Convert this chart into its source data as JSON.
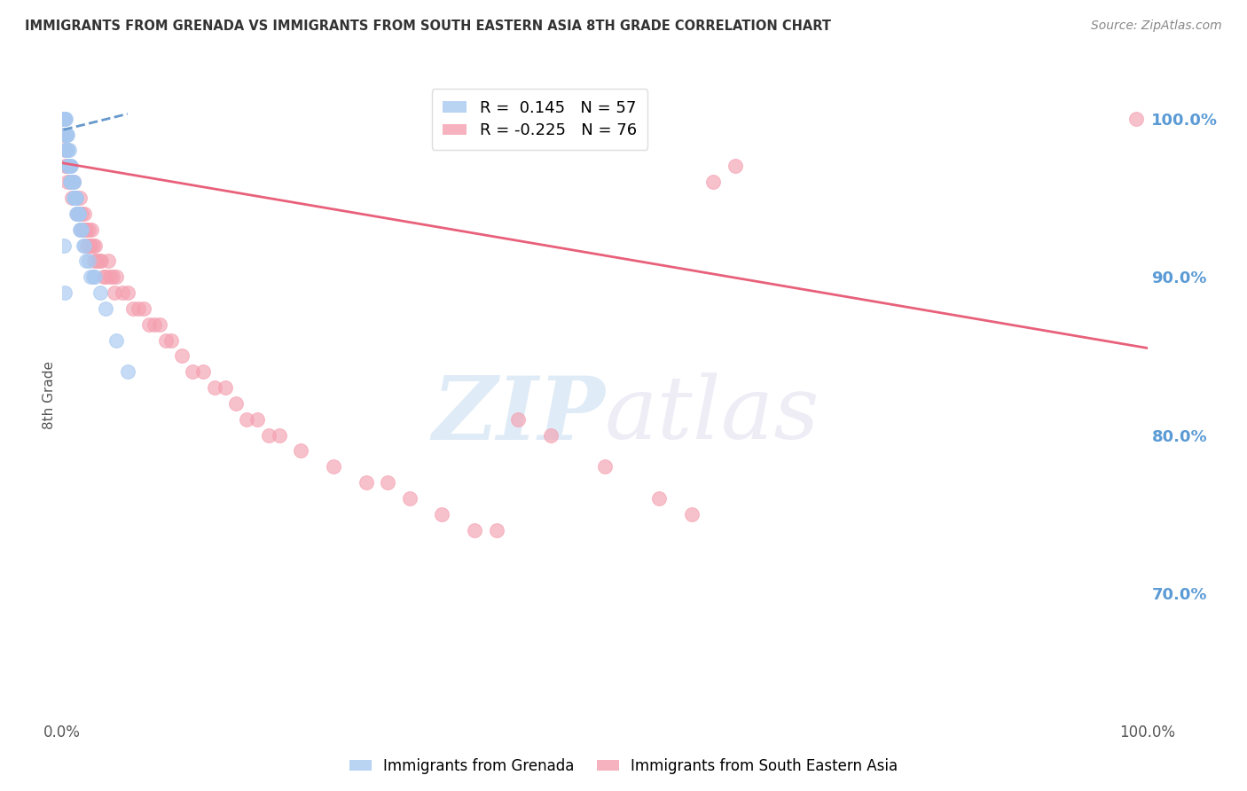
{
  "title": "IMMIGRANTS FROM GRENADA VS IMMIGRANTS FROM SOUTH EASTERN ASIA 8TH GRADE CORRELATION CHART",
  "source_text": "Source: ZipAtlas.com",
  "ylabel_left": "8th Grade",
  "x_tick_labels": [
    "0.0%",
    "",
    "",
    "",
    "",
    "",
    "",
    "",
    "",
    "",
    "100.0%"
  ],
  "x_tick_positions": [
    0.0,
    0.1,
    0.2,
    0.3,
    0.4,
    0.5,
    0.6,
    0.7,
    0.8,
    0.9,
    1.0
  ],
  "y_tick_labels_right": [
    "100.0%",
    "90.0%",
    "80.0%",
    "70.0%"
  ],
  "y_tick_positions_right": [
    1.0,
    0.9,
    0.8,
    0.7
  ],
  "legend_items": [
    {
      "label": "R =  0.145   N = 57",
      "color": "#a8c8f0"
    },
    {
      "label": "R = -0.225   N = 76",
      "color": "#f4a0b0"
    }
  ],
  "watermark_zip": "ZIP",
  "watermark_atlas": "atlas",
  "background_color": "#ffffff",
  "grid_color": "#cccccc",
  "title_color": "#333333",
  "source_color": "#888888",
  "right_axis_color": "#5b9bd5",
  "bottom_legend_labels": [
    "Immigrants from Grenada",
    "Immigrants from South Eastern Asia"
  ],
  "blue_dot_color": "#a8c8f0",
  "pink_dot_color": "#f4a0b0",
  "blue_line_color": "#6699cc",
  "pink_line_color": "#e8607a",
  "blue_line_style": "dashed",
  "pink_line_style": "solid",
  "blue_scatter_x": [
    0.001,
    0.001,
    0.001,
    0.002,
    0.002,
    0.002,
    0.002,
    0.003,
    0.003,
    0.003,
    0.003,
    0.004,
    0.004,
    0.004,
    0.005,
    0.005,
    0.005,
    0.005,
    0.006,
    0.006,
    0.006,
    0.007,
    0.007,
    0.007,
    0.008,
    0.008,
    0.008,
    0.009,
    0.009,
    0.01,
    0.01,
    0.01,
    0.011,
    0.011,
    0.012,
    0.012,
    0.013,
    0.013,
    0.014,
    0.015,
    0.015,
    0.016,
    0.017,
    0.018,
    0.019,
    0.02,
    0.022,
    0.024,
    0.026,
    0.028,
    0.03,
    0.035,
    0.04,
    0.001,
    0.002,
    0.05,
    0.06
  ],
  "blue_scatter_y": [
    1.0,
    1.0,
    1.0,
    0.99,
    0.99,
    1.0,
    1.0,
    0.99,
    0.99,
    1.0,
    0.98,
    0.98,
    0.99,
    0.99,
    0.97,
    0.98,
    0.98,
    0.99,
    0.97,
    0.97,
    0.98,
    0.96,
    0.97,
    0.97,
    0.96,
    0.96,
    0.97,
    0.96,
    0.96,
    0.95,
    0.96,
    0.96,
    0.95,
    0.95,
    0.95,
    0.95,
    0.94,
    0.95,
    0.94,
    0.94,
    0.94,
    0.93,
    0.93,
    0.93,
    0.92,
    0.92,
    0.91,
    0.91,
    0.9,
    0.9,
    0.9,
    0.89,
    0.88,
    0.92,
    0.89,
    0.86,
    0.84
  ],
  "pink_scatter_x": [
    0.001,
    0.002,
    0.003,
    0.004,
    0.005,
    0.006,
    0.007,
    0.008,
    0.009,
    0.01,
    0.011,
    0.012,
    0.013,
    0.014,
    0.015,
    0.016,
    0.017,
    0.018,
    0.019,
    0.02,
    0.021,
    0.022,
    0.023,
    0.024,
    0.025,
    0.026,
    0.027,
    0.028,
    0.029,
    0.03,
    0.032,
    0.034,
    0.036,
    0.038,
    0.04,
    0.042,
    0.044,
    0.046,
    0.048,
    0.05,
    0.055,
    0.06,
    0.065,
    0.07,
    0.075,
    0.08,
    0.085,
    0.09,
    0.095,
    0.1,
    0.11,
    0.12,
    0.13,
    0.14,
    0.15,
    0.16,
    0.17,
    0.18,
    0.19,
    0.2,
    0.22,
    0.25,
    0.28,
    0.3,
    0.32,
    0.35,
    0.38,
    0.4,
    0.42,
    0.45,
    0.5,
    0.55,
    0.58,
    0.6,
    0.62,
    0.99
  ],
  "pink_scatter_y": [
    0.99,
    0.98,
    0.97,
    0.97,
    0.96,
    0.97,
    0.96,
    0.96,
    0.95,
    0.96,
    0.95,
    0.95,
    0.95,
    0.94,
    0.94,
    0.95,
    0.93,
    0.94,
    0.93,
    0.94,
    0.93,
    0.93,
    0.92,
    0.93,
    0.92,
    0.92,
    0.93,
    0.92,
    0.91,
    0.92,
    0.91,
    0.91,
    0.91,
    0.9,
    0.9,
    0.91,
    0.9,
    0.9,
    0.89,
    0.9,
    0.89,
    0.89,
    0.88,
    0.88,
    0.88,
    0.87,
    0.87,
    0.87,
    0.86,
    0.86,
    0.85,
    0.84,
    0.84,
    0.83,
    0.83,
    0.82,
    0.81,
    0.81,
    0.8,
    0.8,
    0.79,
    0.78,
    0.77,
    0.77,
    0.76,
    0.75,
    0.74,
    0.74,
    0.81,
    0.8,
    0.78,
    0.76,
    0.75,
    0.96,
    0.97,
    1.0
  ],
  "xlim": [
    0.0,
    1.0
  ],
  "ylim": [
    0.62,
    1.03
  ],
  "pink_trend_x": [
    0.0,
    1.0
  ],
  "pink_trend_y": [
    0.972,
    0.855
  ],
  "blue_trend_x": [
    0.001,
    0.06
  ],
  "blue_trend_y": [
    0.993,
    1.003
  ]
}
